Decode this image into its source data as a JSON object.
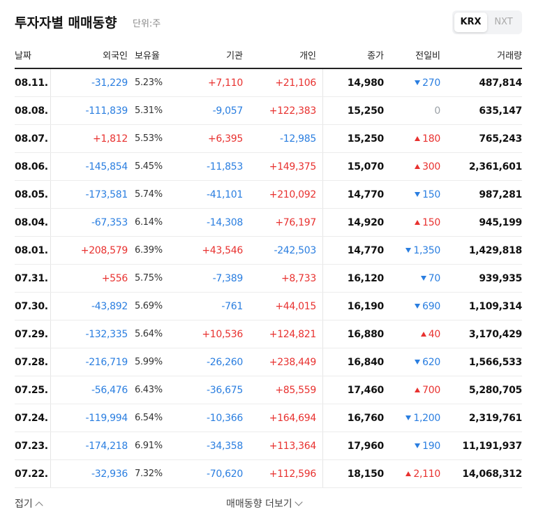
{
  "header": {
    "title": "투자자별 매매동향",
    "unit": "단위:주",
    "tabs": [
      "KRX",
      "NXT"
    ],
    "active_tab": 0
  },
  "table": {
    "columns": [
      "날짜",
      "외국인",
      "보유율",
      "기관",
      "개인",
      "종가",
      "전일비",
      "거래량"
    ],
    "rows": [
      [
        "08.11.",
        "-31,229",
        "5.23%",
        "+7,110",
        "+21,106",
        "14,980",
        "270",
        "487,814"
      ],
      [
        "08.08.",
        "-111,839",
        "5.31%",
        "-9,057",
        "+122,383",
        "15,250",
        "0",
        "635,147"
      ],
      [
        "08.07.",
        "+1,812",
        "5.53%",
        "+6,395",
        "-12,985",
        "15,250",
        "180",
        "765,243"
      ],
      [
        "08.06.",
        "-145,854",
        "5.45%",
        "-11,853",
        "+149,375",
        "15,070",
        "300",
        "2,361,601"
      ],
      [
        "08.05.",
        "-173,581",
        "5.74%",
        "-41,101",
        "+210,092",
        "14,770",
        "150",
        "987,281"
      ],
      [
        "08.04.",
        "-67,353",
        "6.14%",
        "-14,308",
        "+76,197",
        "14,920",
        "150",
        "945,199"
      ],
      [
        "08.01.",
        "+208,579",
        "6.39%",
        "+43,546",
        "-242,503",
        "14,770",
        "1,350",
        "1,429,818"
      ],
      [
        "07.31.",
        "+556",
        "5.75%",
        "-7,389",
        "+8,733",
        "16,120",
        "70",
        "939,935"
      ],
      [
        "07.30.",
        "-43,892",
        "5.69%",
        "-761",
        "+44,015",
        "16,190",
        "690",
        "1,109,314"
      ],
      [
        "07.29.",
        "-132,335",
        "5.64%",
        "+10,536",
        "+124,821",
        "16,880",
        "40",
        "3,170,429"
      ],
      [
        "07.28.",
        "-216,719",
        "5.99%",
        "-26,260",
        "+238,449",
        "16,840",
        "620",
        "1,566,533"
      ],
      [
        "07.25.",
        "-56,476",
        "6.43%",
        "-36,675",
        "+85,559",
        "17,460",
        "700",
        "5,280,705"
      ],
      [
        "07.24.",
        "-119,994",
        "6.54%",
        "-10,366",
        "+164,694",
        "16,760",
        "1,200",
        "2,319,761"
      ],
      [
        "07.23.",
        "-174,218",
        "6.91%",
        "-34,358",
        "+113,364",
        "17,960",
        "190",
        "11,191,937"
      ],
      [
        "07.22.",
        "-32,936",
        "7.32%",
        "-70,620",
        "+112,596",
        "18,150",
        "2,110",
        "14,068,312"
      ]
    ],
    "change_direction": [
      "down",
      "flat",
      "up",
      "up",
      "down",
      "up",
      "down",
      "down",
      "down",
      "up",
      "down",
      "up",
      "down",
      "down",
      "up"
    ]
  },
  "footer": {
    "collapse": "접기",
    "more": "매매동향 더보기"
  }
}
